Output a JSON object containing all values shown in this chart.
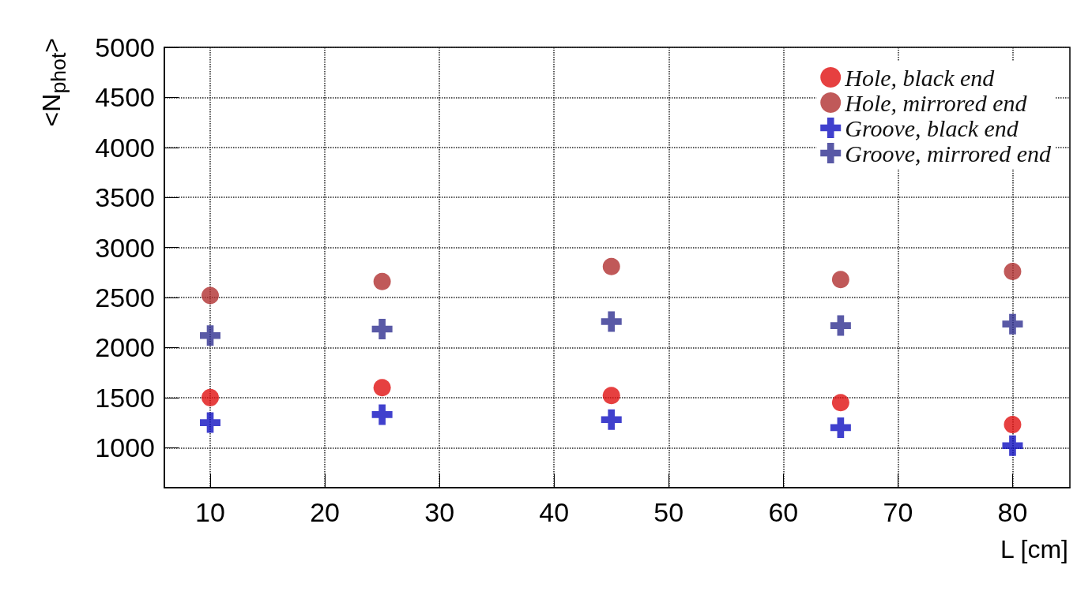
{
  "chart_data": {
    "type": "scatter",
    "xlabel": "L [cm]",
    "ylabel": "<N$_{phot}$>",
    "x": [
      10,
      25,
      45,
      65,
      80
    ],
    "series": [
      {
        "name": "Hole, black end",
        "color": "#e01010",
        "marker": "circle",
        "values": [
          1500,
          1600,
          1520,
          1450,
          1230
        ]
      },
      {
        "name": "Hole, mirrored end",
        "color": "#b03030",
        "marker": "circle",
        "values": [
          2520,
          2660,
          2810,
          2680,
          2760
        ]
      },
      {
        "name": "Groove, black end",
        "color": "#1010c0",
        "marker": "cross",
        "values": [
          1250,
          1330,
          1280,
          1200,
          1020
        ]
      },
      {
        "name": "Groove, mirrored end",
        "color": "#303090",
        "marker": "cross",
        "values": [
          2120,
          2185,
          2260,
          2220,
          2235
        ]
      }
    ],
    "xlim": [
      6,
      85
    ],
    "xticks": [
      10,
      20,
      30,
      40,
      50,
      60,
      70,
      80
    ],
    "ylim": [
      600,
      5000
    ],
    "yticks": [
      1000,
      1500,
      2000,
      2500,
      3000,
      3500,
      4000,
      4500,
      5000
    ],
    "grid": true,
    "legend": "top right"
  }
}
